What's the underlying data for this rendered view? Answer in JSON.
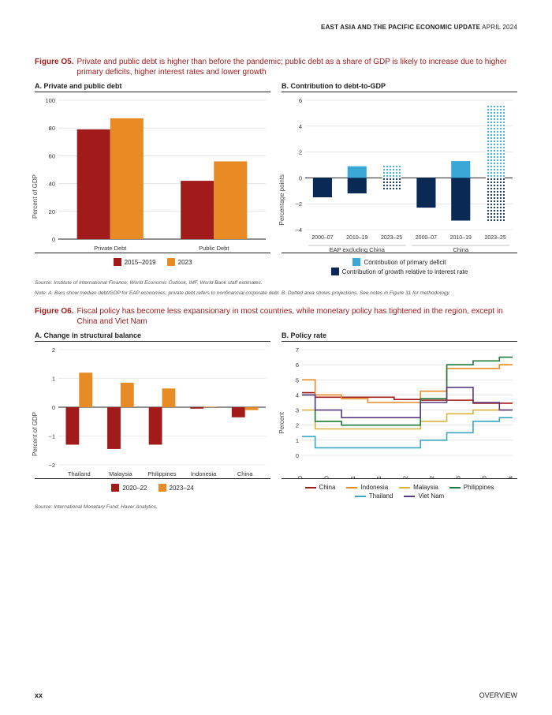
{
  "running_head": {
    "bold": "EAST ASIA AND THE PACIFIC ECONOMIC UPDATE",
    "rest": " APRIL 2024"
  },
  "colors": {
    "red": "#a21b1b",
    "orange": "#e88b24",
    "cyan": "#39a8d6",
    "navy": "#0a2a55",
    "grid": "#cfcfcf",
    "axis": "#222222"
  },
  "figO5": {
    "label": "Figure O5.",
    "caption": "Private and public debt is higher than before the pandemic; public debt as a share of GDP is likely to increase due to higher primary deficits, higher interest rates and lower growth",
    "panelA": {
      "title": "A. Private and public debt",
      "type": "bar",
      "ylabel": "Percent of GDP",
      "ylim": [
        0,
        100
      ],
      "ytick_step": 20,
      "categories": [
        "Private Debt",
        "Public Debt"
      ],
      "series": [
        {
          "name": "2015–2019",
          "color": "#a21b1b",
          "values": [
            79,
            42
          ]
        },
        {
          "name": "2023",
          "color": "#e88b24",
          "values": [
            87,
            56
          ]
        }
      ],
      "bar_width": 0.32,
      "legend": [
        "2015–2019",
        "2023"
      ],
      "label_fontsize": 8
    },
    "panelB": {
      "title": "B. Contribution to debt-to-GDP",
      "type": "stacked-bar",
      "ylabel": "Percentage points",
      "ylim": [
        -4,
        6
      ],
      "ytick_step": 2,
      "super_categories": [
        "EAP excluding China",
        "China"
      ],
      "categories": [
        "2000–07",
        "2010–19",
        "2023–25",
        "2000–07",
        "2010–19",
        "2023–25"
      ],
      "series": [
        {
          "name": "Contribution of primary deficit",
          "color": "#39a8d6",
          "values": [
            0.0,
            0.9,
            1.0,
            0.0,
            1.3,
            1.5
          ],
          "projection_mask": [
            false,
            false,
            true,
            false,
            false,
            true
          ]
        },
        {
          "name": "Contribution of growth relative to interest rate",
          "color": "#0a2a55",
          "values": [
            -1.5,
            -1.2,
            -0.9,
            -2.3,
            -3.3,
            -3.4
          ],
          "projection_mask": [
            false,
            false,
            true,
            false,
            false,
            true
          ]
        },
        {
          "name": "Contribution of primary deficit (extra, 2023–25 China)",
          "color": "#39a8d6",
          "values": [
            0,
            0,
            0,
            0,
            0,
            4.2
          ],
          "projection_mask": [
            false,
            false,
            false,
            false,
            false,
            true
          ]
        }
      ],
      "bar_width": 0.55,
      "legend": [
        "Contribution of primary deficit",
        "Contribution of growth relative to interest rate"
      ]
    },
    "source": "Source: Institute of International Finance; World Economic Outlook, IMF, World Bank staff estimates.",
    "note": "Note: A. Bars show median debt/GDP for EAP economies; private debt refers to nonfinancial corporate debt. B. Dotted area shows projections. See notes in Figure 31 for methodology."
  },
  "figO6": {
    "label": "Figure O6.",
    "caption": "Fiscal policy has become less expansionary in most countries, while monetary policy has tightened in the region, except in China and Viet Nam",
    "panelA": {
      "title": "A. Change in structural balance",
      "type": "bar",
      "ylabel": "Percent of GDP",
      "ylim": [
        -2,
        2
      ],
      "ytick_step": 1,
      "categories": [
        "Thailand",
        "Malaysia",
        "Philippines",
        "Indonesia",
        "China"
      ],
      "series": [
        {
          "name": "2020–22",
          "color": "#a21b1b",
          "values": [
            -1.3,
            -1.45,
            -1.3,
            -0.05,
            -0.35
          ]
        },
        {
          "name": "2023–24",
          "color": "#e88b24",
          "values": [
            1.2,
            0.85,
            0.65,
            0.02,
            -0.1
          ]
        }
      ],
      "bar_width": 0.32,
      "legend": [
        "2020–22",
        "2023–24"
      ]
    },
    "panelB": {
      "title": "B. Policy rate",
      "type": "line",
      "ylabel": "Percent",
      "ylim": [
        0,
        7
      ],
      "ytick_step": 1,
      "x_labels": [
        "Jan-20",
        "Jul-20",
        "Jan-21",
        "Jul-21",
        "Jan-22",
        "Jul-22",
        "Jan-23",
        "Jul-23",
        "Jan-24"
      ],
      "line_width": 1.6,
      "series": [
        {
          "name": "China",
          "color": "#a21b1b",
          "values": [
            4.15,
            3.85,
            3.85,
            3.85,
            3.7,
            3.65,
            3.65,
            3.45,
            3.45
          ]
        },
        {
          "name": "Indonesia",
          "color": "#e88b24",
          "values": [
            5.0,
            4.0,
            3.75,
            3.5,
            3.5,
            4.25,
            5.75,
            5.75,
            6.0
          ]
        },
        {
          "name": "Malaysia",
          "color": "#d9b23c",
          "values": [
            3.0,
            1.75,
            1.75,
            1.75,
            1.75,
            2.25,
            2.75,
            3.0,
            3.0
          ]
        },
        {
          "name": "Philippines",
          "color": "#1f7a3a",
          "values": [
            4.0,
            2.25,
            2.0,
            2.0,
            2.0,
            3.75,
            6.0,
            6.25,
            6.5
          ]
        },
        {
          "name": "Thailand",
          "color": "#3aa7c4",
          "values": [
            1.25,
            0.5,
            0.5,
            0.5,
            0.5,
            1.0,
            1.5,
            2.25,
            2.5
          ]
        },
        {
          "name": "Viet Nam",
          "color": "#5a3a80",
          "values": [
            4.0,
            3.0,
            2.5,
            2.5,
            2.5,
            3.5,
            4.5,
            3.5,
            3.0
          ]
        }
      ],
      "legend": [
        "China",
        "Indonesia",
        "Malaysia",
        "Philippines",
        "Thailand",
        "Viet Nam"
      ]
    },
    "source": "Source: International Monetary Fund; Haver Analytics."
  },
  "footer": {
    "page": "xx",
    "section": "OVERVIEW"
  }
}
